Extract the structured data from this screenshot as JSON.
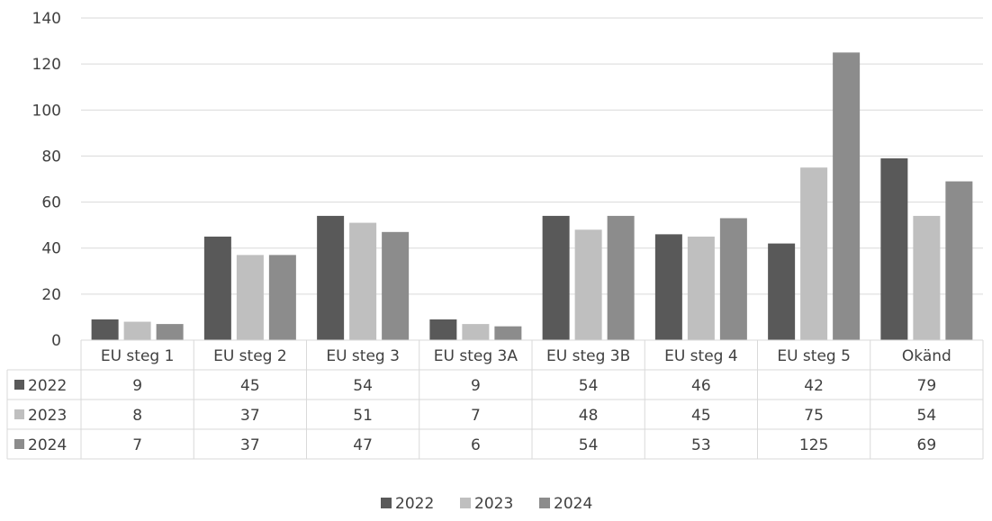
{
  "chart_data": {
    "type": "bar",
    "categories": [
      "EU steg 1",
      "EU steg 2",
      "EU steg 3",
      "EU steg 3A",
      "EU steg 3B",
      "EU steg 4",
      "EU steg 5",
      "Okänd"
    ],
    "series": [
      {
        "name": "2022",
        "values": [
          9,
          45,
          54,
          9,
          54,
          46,
          42,
          79
        ]
      },
      {
        "name": "2023",
        "values": [
          8,
          37,
          51,
          7,
          48,
          45,
          75,
          54
        ]
      },
      {
        "name": "2024",
        "values": [
          7,
          37,
          47,
          6,
          54,
          53,
          125,
          69
        ]
      }
    ],
    "title": "",
    "xlabel": "",
    "ylabel": "",
    "ylim": [
      0,
      140
    ],
    "yticks": [
      0,
      20,
      40,
      60,
      80,
      100,
      120,
      140
    ],
    "grid": true,
    "legend": "bottom-center",
    "data_table": true,
    "colors": {
      "2022": "#595959",
      "2023": "#bfbfbf",
      "2024": "#8c8c8c"
    }
  }
}
